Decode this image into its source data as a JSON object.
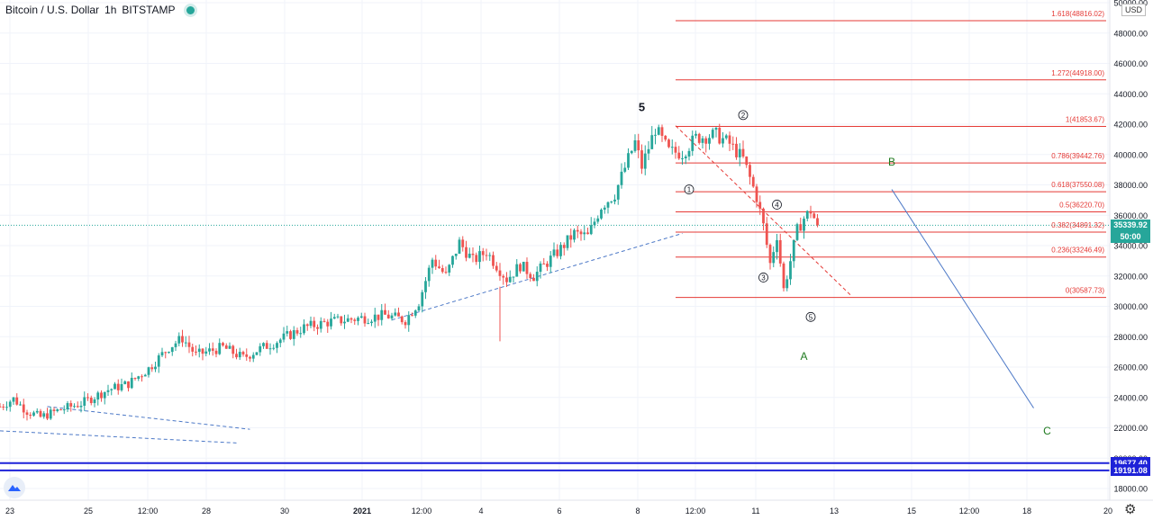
{
  "header": {
    "symbol": "Bitcoin / U.S. Dollar",
    "interval": "1h",
    "exchange": "BITSTAMP"
  },
  "currency_label": "USD",
  "price_badges": {
    "last_price": "35339.92",
    "countdown": "50:00",
    "line_upper": "19677.40",
    "line_lower": "19191.08"
  },
  "colors": {
    "up": "#26a69a",
    "down": "#ef5350",
    "fib": "#e53935",
    "trend": "#4d79c7",
    "blue_line": "#1e22d8",
    "wave_label_green": "#1f7a1f",
    "last_price_badge": "#26a69a",
    "blue_badge": "#1e22d8"
  },
  "chart_data": {
    "type": "candlestick",
    "x_tick_labels": [
      "23",
      "25",
      "12:00",
      "28",
      "30",
      "2021",
      "12:00",
      "4",
      "6",
      "8",
      "12:00",
      "11",
      "13",
      "15",
      "12:00",
      "18",
      "20"
    ],
    "y_tick_labels": [
      "18000.00",
      "20000.00",
      "22000.00",
      "24000.00",
      "26000.00",
      "28000.00",
      "30000.00",
      "32000.00",
      "34000.00",
      "36000.00",
      "38000.00",
      "40000.00",
      "42000.00",
      "44000.00",
      "46000.00",
      "48000.00",
      "50000.00"
    ],
    "ylim": [
      17500,
      50300
    ],
    "price_path": [
      [
        0,
        23400
      ],
      [
        2,
        23900
      ],
      [
        4,
        23100
      ],
      [
        6,
        22700
      ],
      [
        9,
        23200
      ],
      [
        12,
        23600
      ],
      [
        16,
        24500
      ],
      [
        19,
        24900
      ],
      [
        22,
        25900
      ],
      [
        25,
        27300
      ],
      [
        27,
        27900
      ],
      [
        29,
        26800
      ],
      [
        33,
        27300
      ],
      [
        36,
        26600
      ],
      [
        38,
        27100
      ],
      [
        41,
        27700
      ],
      [
        45,
        28600
      ],
      [
        49,
        29000
      ],
      [
        53,
        29200
      ],
      [
        57,
        29400
      ],
      [
        60,
        29100
      ],
      [
        62,
        30300
      ],
      [
        64,
        33100
      ],
      [
        66,
        32000
      ],
      [
        68,
        34200
      ],
      [
        70,
        33000
      ],
      [
        72,
        33600
      ],
      [
        75,
        31800
      ],
      [
        77,
        32700
      ],
      [
        79,
        32000
      ],
      [
        81,
        32900
      ],
      [
        83,
        33800
      ],
      [
        85,
        34800
      ],
      [
        87,
        34600
      ],
      [
        89,
        36600
      ],
      [
        91,
        37400
      ],
      [
        93,
        39700
      ],
      [
        94,
        40800
      ],
      [
        95,
        39200
      ],
      [
        97,
        41700
      ],
      [
        99,
        40200
      ],
      [
        101,
        40100
      ],
      [
        103,
        41100
      ],
      [
        106,
        41300
      ],
      [
        108,
        40700
      ],
      [
        110,
        39700
      ],
      [
        112,
        37200
      ],
      [
        113,
        35300
      ],
      [
        114,
        32800
      ],
      [
        115,
        34700
      ],
      [
        116,
        31100
      ],
      [
        117,
        33000
      ],
      [
        118,
        35000
      ],
      [
        119,
        35800
      ],
      [
        120,
        36300
      ],
      [
        121,
        35339.92
      ]
    ],
    "events": [
      {
        "type": "wick",
        "x": 74,
        "low": 27700,
        "high": 31300
      }
    ],
    "fib_levels": [
      {
        "ratio": "0",
        "label": "0(30587.73)",
        "price": 30587.73
      },
      {
        "ratio": "0.236",
        "label": "0.236(33246.49)",
        "price": 33246.49
      },
      {
        "ratio": "0.382",
        "label": "0.382(34891.32)",
        "price": 34891.32
      },
      {
        "ratio": "0.5",
        "label": "0.5(36220.70)",
        "price": 36220.7
      },
      {
        "ratio": "0.618",
        "label": "0.618(37550.08)",
        "price": 37550.08
      },
      {
        "ratio": "0.786",
        "label": "0.786(39442.76)",
        "price": 39442.76
      },
      {
        "ratio": "1",
        "label": "1(41853.67)",
        "price": 41853.67
      },
      {
        "ratio": "1.272",
        "label": "1.272(44918.00)",
        "price": 44918.0
      },
      {
        "ratio": "1.618",
        "label": "1.618(48816.02)",
        "price": 48816.02
      }
    ],
    "fib_x_range": [
      100,
      168
    ],
    "horizontal_lines": [
      {
        "label": "19677.40",
        "price": 19677.4
      },
      {
        "label": "19191.08",
        "price": 19191.08
      }
    ],
    "last_price": {
      "price": 35339.92,
      "label": "35339.92",
      "countdown": "50:00"
    },
    "trendlines": [
      {
        "style": "dashed",
        "color": "#4d79c7",
        "from": [
          58,
          29100
        ],
        "to": [
          101,
          34800
        ]
      },
      {
        "style": "dashed",
        "color": "#4d79c7",
        "from": [
          7,
          23400
        ],
        "to": [
          37,
          21900
        ]
      },
      {
        "style": "dashed",
        "color": "#4d79c7",
        "from": [
          0,
          21800
        ],
        "to": [
          35,
          21000
        ]
      },
      {
        "style": "dashed",
        "color": "#e53935",
        "from": [
          100,
          41900
        ],
        "to": [
          126,
          30700
        ]
      },
      {
        "style": "solid",
        "color": "#4d79c7",
        "from": [
          132,
          37700
        ],
        "to": [
          153,
          23300
        ]
      }
    ],
    "wave_labels": [
      {
        "text": "5",
        "x": 95,
        "price": 43100,
        "style": "bold"
      },
      {
        "text": "1",
        "x": 102,
        "price": 37700,
        "style": "circled"
      },
      {
        "text": "2",
        "x": 110,
        "price": 42600,
        "style": "circled"
      },
      {
        "text": "3",
        "x": 113,
        "price": 31900,
        "style": "circled"
      },
      {
        "text": "4",
        "x": 115,
        "price": 36700,
        "style": "circled"
      },
      {
        "text": "5",
        "x": 120,
        "price": 29300,
        "style": "circled"
      },
      {
        "text": "A",
        "x": 119,
        "price": 26700,
        "style": "green"
      },
      {
        "text": "B",
        "x": 132,
        "price": 39500,
        "style": "green"
      },
      {
        "text": "C",
        "x": 155,
        "price": 21800,
        "style": "green"
      }
    ]
  }
}
